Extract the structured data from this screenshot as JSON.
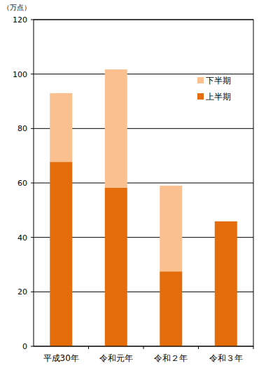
{
  "chart_data": {
    "type": "bar",
    "stacked": true,
    "y_label": "（万点）",
    "categories": [
      "平成30年",
      "令和元年",
      "令和２年",
      "令和３年"
    ],
    "series": [
      {
        "name": "上半期",
        "color": "#e46c0a",
        "values": [
          67.7,
          58.3,
          27.5,
          45.9
        ]
      },
      {
        "name": "下半期",
        "color": "#fac090",
        "values": [
          25.3,
          43.4,
          31.5,
          null
        ]
      }
    ],
    "ylim": [
      0,
      120
    ],
    "yticks": [
      0,
      20,
      40,
      60,
      80,
      100,
      120
    ],
    "grid": true,
    "legend": "upper right"
  }
}
